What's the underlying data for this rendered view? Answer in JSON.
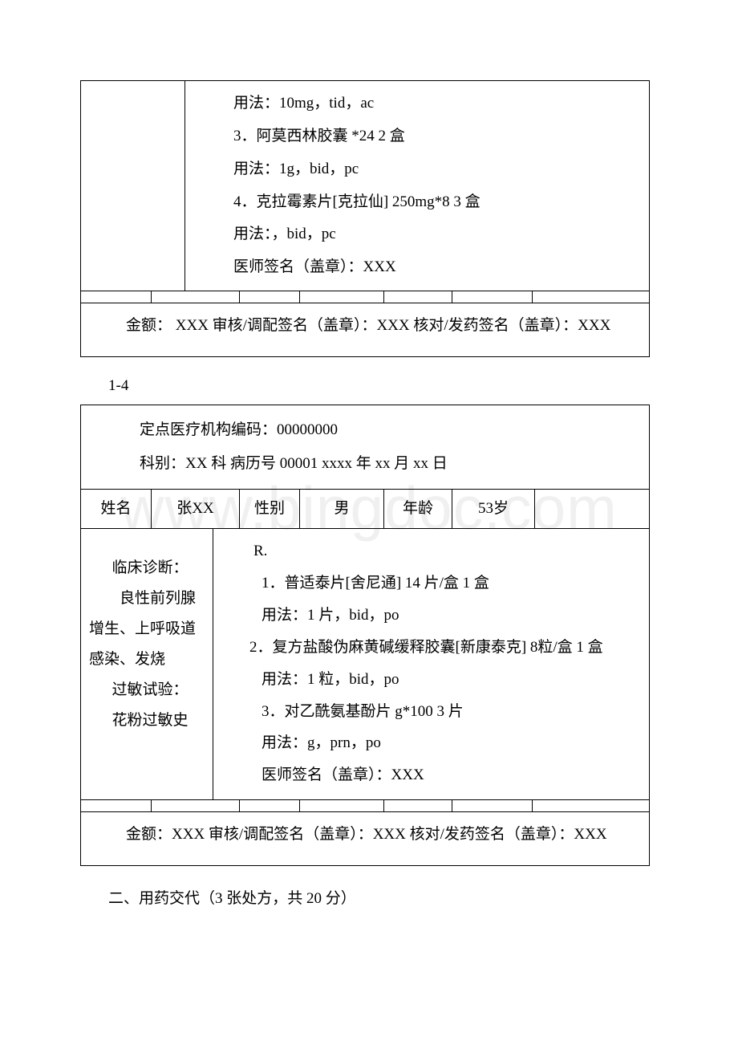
{
  "watermark": "www.bingdoc.com",
  "box1": {
    "rx": [
      "用法：10mg，tid，ac",
      "3．阿莫西林胶囊 *24 2 盒",
      "用法：1g，bid，pc",
      "4．克拉霉素片[克拉仙] 250mg*8 3 盒",
      "用法：，bid，pc",
      "医师签名（盖章）：XXX"
    ],
    "footer": "金额： XXX 审核/调配签名（盖章）：XXX 核对/发药签名（盖章）：XXX"
  },
  "label14": "1-4",
  "box2": {
    "header_line1": "定点医疗机构编码：00000000",
    "header_line2": "科别：XX 科 病历号 00001 xxxx 年 xx 月 xx 日",
    "patient": {
      "name_label": "姓名",
      "name_value": "张XX",
      "sex_label": "性别",
      "sex_value": "男",
      "age_label": "年龄",
      "age_value": "53岁"
    },
    "clinical": {
      "diag_label": "临床诊断：",
      "diag_text": "良性前列腺增生、上呼吸道感染、发烧",
      "allergy_label": "过敏试验：",
      "allergy_text": "花粉过敏史"
    },
    "rx_mark": "R.",
    "rx": [
      "1．普适泰片[舍尼通] 14 片/盒 1 盒",
      "用法：1 片，bid，po",
      "2．复方盐酸伪麻黄碱缓释胶囊[新康泰克] 8粒/盒 1 盒",
      "用法：1 粒，bid，po",
      "3．对乙酰氨基酚片 g*100 3 片",
      "用法：g，prn，po",
      "医师签名（盖章）：XXX"
    ],
    "footer": "金额：XXX 审核/调配签名（盖章）：XXX 核对/发药签名（盖章）：XXX"
  },
  "section2": "二、用药交代（3 张处方，共 20 分）"
}
